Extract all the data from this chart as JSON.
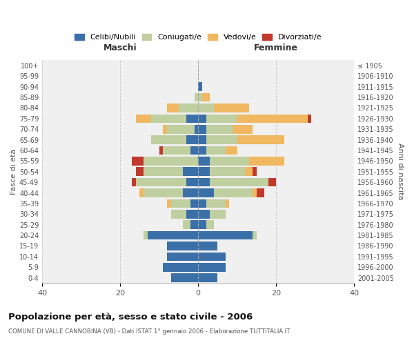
{
  "age_groups": [
    "0-4",
    "5-9",
    "10-14",
    "15-19",
    "20-24",
    "25-29",
    "30-34",
    "35-39",
    "40-44",
    "45-49",
    "50-54",
    "55-59",
    "60-64",
    "65-69",
    "70-74",
    "75-79",
    "80-84",
    "85-89",
    "90-94",
    "95-99",
    "100+"
  ],
  "birth_years": [
    "2001-2005",
    "1996-2000",
    "1991-1995",
    "1986-1990",
    "1981-1985",
    "1976-1980",
    "1971-1975",
    "1966-1970",
    "1961-1965",
    "1956-1960",
    "1951-1955",
    "1946-1950",
    "1941-1945",
    "1936-1940",
    "1931-1935",
    "1926-1930",
    "1921-1925",
    "1916-1920",
    "1911-1915",
    "1906-1910",
    "≤ 1905"
  ],
  "maschi": {
    "celibi": [
      7,
      9,
      8,
      8,
      13,
      2,
      3,
      2,
      4,
      3,
      4,
      0,
      2,
      3,
      1,
      3,
      0,
      0,
      0,
      0,
      0
    ],
    "coniugati": [
      0,
      0,
      0,
      0,
      1,
      2,
      4,
      5,
      10,
      13,
      10,
      14,
      7,
      9,
      7,
      9,
      5,
      1,
      0,
      0,
      0
    ],
    "vedovi": [
      0,
      0,
      0,
      0,
      0,
      0,
      0,
      1,
      1,
      0,
      0,
      0,
      0,
      0,
      1,
      4,
      3,
      0,
      0,
      0,
      0
    ],
    "divorziati": [
      0,
      0,
      0,
      0,
      0,
      0,
      0,
      0,
      0,
      1,
      2,
      3,
      1,
      0,
      0,
      0,
      0,
      0,
      0,
      0,
      0
    ]
  },
  "femmine": {
    "nubili": [
      5,
      7,
      7,
      5,
      14,
      2,
      3,
      2,
      4,
      3,
      3,
      3,
      2,
      2,
      2,
      2,
      0,
      0,
      1,
      0,
      0
    ],
    "coniugate": [
      0,
      0,
      0,
      0,
      1,
      2,
      4,
      5,
      10,
      15,
      9,
      10,
      5,
      8,
      7,
      8,
      4,
      1,
      0,
      0,
      0
    ],
    "vedove": [
      0,
      0,
      0,
      0,
      0,
      0,
      0,
      1,
      1,
      0,
      2,
      9,
      3,
      12,
      5,
      18,
      9,
      2,
      0,
      0,
      0
    ],
    "divorziate": [
      0,
      0,
      0,
      0,
      0,
      0,
      0,
      0,
      2,
      2,
      1,
      0,
      0,
      0,
      0,
      1,
      0,
      0,
      0,
      0,
      0
    ]
  },
  "colors": {
    "celibi": "#3A6FA8",
    "coniugati": "#BFCFA0",
    "vedovi": "#F0B860",
    "divorziati": "#C0392B"
  },
  "xlim": 40,
  "title": "Popolazione per età, sesso e stato civile - 2006",
  "subtitle": "COMUNE DI VALLE CANNOBINA (VB) - Dati ISTAT 1° gennaio 2006 - Elaborazione TUTTITALIA.IT",
  "ylabel_left": "Fasce di età",
  "ylabel_right": "Anni di nascita",
  "xlabel_maschi": "Maschi",
  "xlabel_femmine": "Femmine",
  "legend_labels": [
    "Celibi/Nubili",
    "Coniugati/e",
    "Vedovi/e",
    "Divorziati/e"
  ],
  "bg_color": "#f0f0f0",
  "grid_color": "#cccccc"
}
